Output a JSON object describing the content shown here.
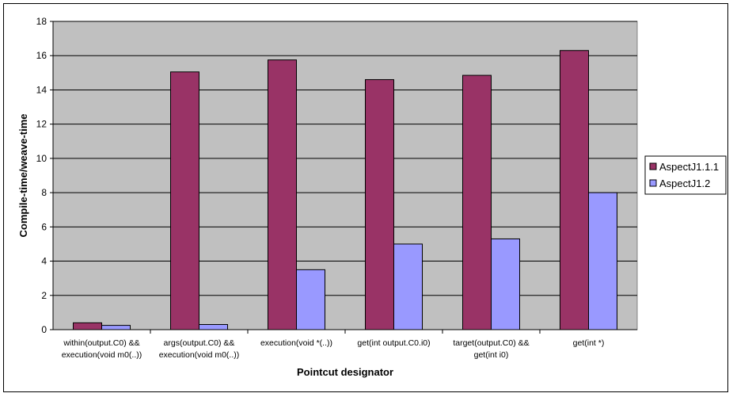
{
  "chart_data": {
    "type": "bar",
    "title": "",
    "xlabel": "Pointcut designator",
    "ylabel": "Compile-time/weave-time",
    "ylim": [
      0,
      18
    ],
    "yticks": [
      0,
      2,
      4,
      6,
      8,
      10,
      12,
      14,
      16,
      18
    ],
    "grid": true,
    "legend_position": "right",
    "plot_background": "#c0c0c0",
    "categories": [
      [
        "within(output.C0) &&",
        "execution(void m0(..))"
      ],
      [
        "args(output.C0) &&",
        "execution(void m0(..))"
      ],
      [
        "execution(void *(..))"
      ],
      [
        "get(int output.C0.i0)"
      ],
      [
        "target(output.C0) &&",
        "get(int i0)"
      ],
      [
        "get(int *)"
      ]
    ],
    "series": [
      {
        "name": "AspectJ1.1.1",
        "color": "#993366",
        "values": [
          0.4,
          15.05,
          15.75,
          14.6,
          14.85,
          16.3
        ]
      },
      {
        "name": "AspectJ1.2",
        "color": "#9999ff",
        "values": [
          0.25,
          0.3,
          3.5,
          5.0,
          5.3,
          8.0
        ]
      }
    ]
  }
}
